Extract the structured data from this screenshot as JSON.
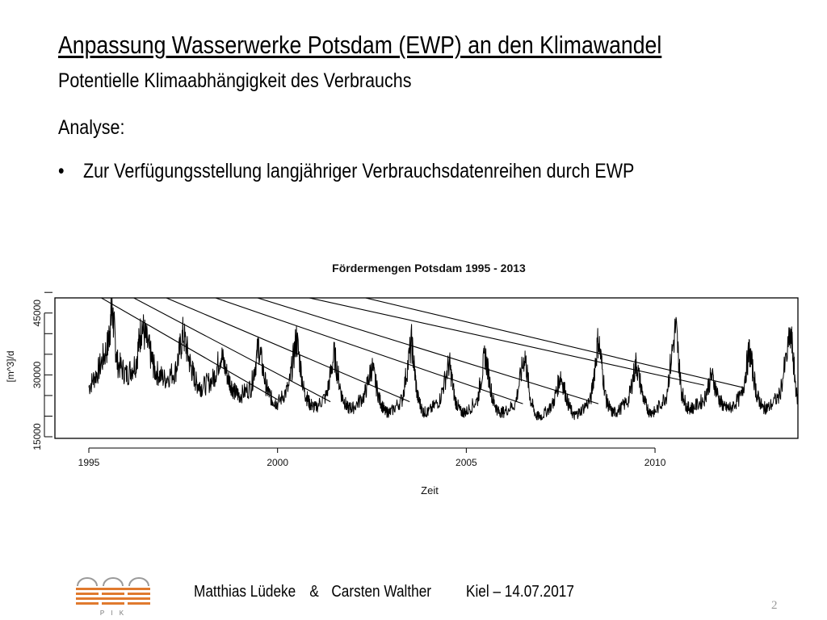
{
  "slide": {
    "title": "Anpassung Wasserwerke Potsdam (EWP) an den Klimawandel",
    "subtitle": "Potentielle Klimaabhängigkeit des Verbrauchs",
    "section_heading": "Analyse:",
    "bullet_marker": "•",
    "bullet_text": "Zur Verfügungsstellung langjähriger Verbrauchsdatenreihen durch EWP",
    "page_number": "2"
  },
  "footer": {
    "author1": "Matthias Lüdeke",
    "separator": "&",
    "author2": "Carsten Walther",
    "place_date": "Kiel – 14.07.2017",
    "logo_label": "P I K"
  },
  "chart_data": {
    "type": "line",
    "title": "Fördermengen Potsdam 1995 - 2013",
    "xlabel": "Zeit",
    "ylabel": "[m^3]/d",
    "xlim": [
      1995,
      2014
    ],
    "ylim": [
      15000,
      52000
    ],
    "x_ticks": [
      1995,
      2000,
      2005,
      2010
    ],
    "x_tick_labels": [
      "1995",
      "2000",
      "2005",
      "2010"
    ],
    "y_ticks": [
      15000,
      30000,
      45000
    ],
    "y_tick_labels": [
      "15000",
      "30000",
      "45000"
    ],
    "grid": false,
    "legend": "none",
    "series": [
      {
        "x": [
          1995.0,
          1995.25,
          1995.5,
          1995.62,
          1995.75,
          1996.0,
          1996.25,
          1996.4,
          1996.6,
          1996.75,
          1997.0,
          1997.3,
          1997.5,
          1997.7,
          1997.85,
          1998.0,
          1998.3,
          1998.5,
          1998.7,
          1998.85,
          1999.0,
          1999.3,
          1999.5,
          1999.7,
          1999.85,
          2000.0,
          2000.3,
          2000.5,
          2000.7,
          2000.85,
          2001.0,
          2001.3,
          2001.5,
          2001.7,
          2001.85,
          2002.0,
          2002.3,
          2002.5,
          2002.7,
          2002.85,
          2003.0,
          2003.3,
          2003.55,
          2003.7,
          2003.85,
          2004.0,
          2004.3,
          2004.55,
          2004.7,
          2004.85,
          2005.0,
          2005.3,
          2005.5,
          2005.7,
          2005.85,
          2006.0,
          2006.3,
          2006.55,
          2006.7,
          2006.85,
          2007.0,
          2007.3,
          2007.5,
          2007.7,
          2007.85,
          2008.0,
          2008.3,
          2008.5,
          2008.7,
          2008.85,
          2009.0,
          2009.3,
          2009.5,
          2009.7,
          2009.85,
          2010.0,
          2010.3,
          2010.55,
          2010.7,
          2010.85,
          2011.0,
          2011.3,
          2011.5,
          2011.7,
          2011.85,
          2012.0,
          2012.3,
          2012.5,
          2012.7,
          2012.85,
          2013.0,
          2013.3,
          2013.6,
          2013.75,
          2013.95
        ],
        "y": [
          27000,
          31000,
          37000,
          46000,
          33000,
          30000,
          33000,
          42000,
          36000,
          31000,
          29000,
          31000,
          40000,
          32000,
          28000,
          27000,
          29000,
          35000,
          29000,
          26000,
          25000,
          27000,
          37000,
          27000,
          24000,
          23000,
          27000,
          39000,
          26000,
          23000,
          22000,
          25000,
          35000,
          25000,
          22000,
          22000,
          25000,
          32000,
          24000,
          21000,
          21000,
          24000,
          38000,
          25000,
          21000,
          21000,
          24000,
          33000,
          24000,
          21000,
          21000,
          24000,
          35000,
          24000,
          21000,
          21000,
          23000,
          35000,
          24000,
          20000,
          20000,
          23000,
          30000,
          23000,
          20000,
          21000,
          24000,
          39000,
          24000,
          21000,
          21000,
          24000,
          33000,
          24000,
          21000,
          21000,
          25000,
          42000,
          26000,
          22000,
          22000,
          24000,
          30000,
          24000,
          22000,
          22000,
          25000,
          36000,
          25000,
          22000,
          22000,
          25000,
          40000,
          25000,
          21000
        ]
      }
    ],
    "trend_lines": [
      {
        "from": [
          1994.7,
          52000
        ],
        "to": [
          2000.0,
          24000
        ]
      },
      {
        "from": [
          1995.5,
          52000
        ],
        "to": [
          2001.4,
          23500
        ]
      },
      {
        "from": [
          1996.2,
          52000
        ],
        "to": [
          2003.5,
          23500
        ]
      },
      {
        "from": [
          1997.3,
          52000
        ],
        "to": [
          2006.5,
          23000
        ]
      },
      {
        "from": [
          1998.3,
          52000
        ],
        "to": [
          2008.5,
          23000
        ]
      },
      {
        "from": [
          1999.2,
          52000
        ],
        "to": [
          2011.3,
          27500
        ]
      },
      {
        "from": [
          2000.8,
          52000
        ],
        "to": [
          2012.3,
          27000
        ]
      }
    ]
  }
}
